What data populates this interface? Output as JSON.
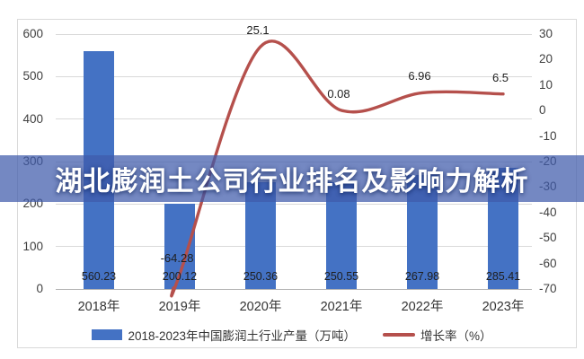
{
  "title_overlay": {
    "text": "湖北膨润土公司行业排名及影响力解析"
  },
  "colors": {
    "bar": "#4472c4",
    "line": "#b5504c",
    "gridline": "#d9d9d9",
    "overlay_band": "rgba(62,90,170,0.72)"
  },
  "chart_data": {
    "type": "bar",
    "subtype": "bar+smooth-line combo, dual axis",
    "categories": [
      "2018年",
      "2019年",
      "2020年",
      "2021年",
      "2022年",
      "2023年"
    ],
    "series": [
      {
        "name": "2018-2023年中国膨润土行业产量（万吨）",
        "type": "bar",
        "axis": "left",
        "color": "#4472c4",
        "values": [
          560.23,
          200.12,
          250.36,
          250.55,
          267.98,
          285.41
        ],
        "labels": [
          "560.23",
          "200.12",
          "250.36",
          "250.55",
          "267.98",
          "285.41"
        ]
      },
      {
        "name": "增长率（%）",
        "type": "line",
        "axis": "right",
        "color": "#b5504c",
        "values": [
          null,
          -64.28,
          25.1,
          0.08,
          6.96,
          6.5
        ],
        "labels": [
          "",
          "-64.28",
          "25.1",
          "0.08",
          "6.96",
          "6.5"
        ]
      }
    ],
    "left_axis": {
      "min": 0,
      "max": 600,
      "step": 100,
      "ticks": [
        "600",
        "500",
        "400",
        "300",
        "200",
        "100",
        "0"
      ]
    },
    "right_axis": {
      "min": -70,
      "max": 30,
      "step": 10,
      "ticks": [
        "30",
        "20",
        "10",
        "0",
        "-10",
        "-20",
        "-30",
        "-40",
        "-50",
        "-60",
        "-70"
      ]
    },
    "grid": true,
    "legend_position": "bottom",
    "title": "",
    "xlabel": "",
    "ylabel": ""
  }
}
